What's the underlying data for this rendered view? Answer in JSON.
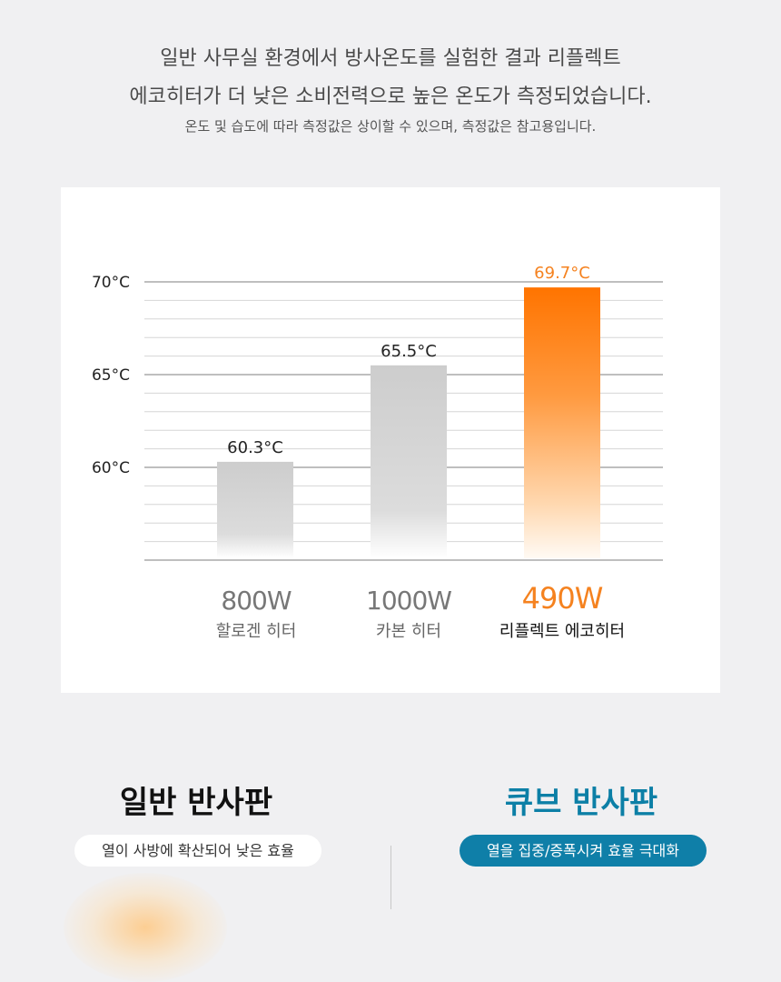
{
  "intro": {
    "line1": "일반 사무실 환경에서 방사온도를 실험한 결과 리플렉트",
    "line2": "에코히터가 더 낮은 소비전력으로 높은 온도가 측정되었습니다.",
    "note": "온도 및 습도에 따라 측정값은 상이할 수 있으며, 측정값은 참고용입니다."
  },
  "chart_data": {
    "type": "bar",
    "categories": [
      "800W 할로겐 히터",
      "1000W 카본 히터",
      "490W 리플렉트 에코히터"
    ],
    "values": [
      60.3,
      65.5,
      69.7
    ],
    "value_labels": [
      "60.3°C",
      "65.5°C",
      "69.7°C"
    ],
    "y_ticks": [
      60,
      65,
      70
    ],
    "y_tick_labels": [
      "60°C",
      "65°C",
      "70°C"
    ],
    "ylim": [
      55,
      70
    ],
    "grid": true,
    "highlight_index": 2,
    "colors": {
      "bar": "#c8c8c8",
      "highlight": "#ff7a00",
      "highlight_label": "#f5821f",
      "grid": "#d6d6d6",
      "grid_major": "#aaaaaa"
    },
    "category_labels": [
      {
        "watt": "800W",
        "name": "할로겐 히터"
      },
      {
        "watt": "1000W",
        "name": "카본 히터"
      },
      {
        "watt": "490W",
        "name": "리플렉트 에코히터"
      }
    ]
  },
  "compare": {
    "left": {
      "title": "일반 반사판",
      "pill": "열이 사방에 확산되어 낮은 효율"
    },
    "right": {
      "title": "큐브 반사판",
      "pill": "열을 집중/증폭시켜 효율 극대화",
      "color": "#0f7fa8"
    }
  }
}
